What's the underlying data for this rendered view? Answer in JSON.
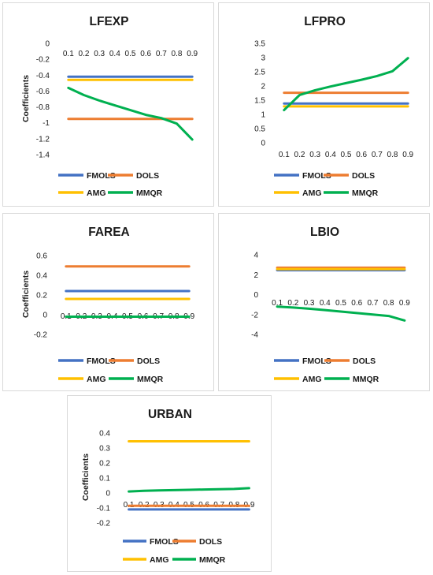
{
  "chart_data": [
    {
      "type": "line",
      "title": "LFEXP",
      "xlabel": "",
      "ylabel": "Coefficients",
      "x": [
        "0.1",
        "0.2",
        "0.3",
        "0.4",
        "0.5",
        "0.6",
        "0.7",
        "0.8",
        "0.9"
      ],
      "yticks": [
        "0",
        "-0.2",
        "-0.4",
        "-0.6",
        "-0.8",
        "-1",
        "-1.2",
        "-1.4"
      ],
      "ylim": [
        -1.4,
        0
      ],
      "x_axis_position": "top",
      "grid": false,
      "legend_position": "bottom",
      "series": [
        {
          "name": "FMOLS",
          "color": "#4472C4",
          "values": [
            -0.42,
            -0.42,
            -0.42,
            -0.42,
            -0.42,
            -0.42,
            -0.42,
            -0.42,
            -0.42
          ]
        },
        {
          "name": "DOLS",
          "color": "#ED7D31",
          "values": [
            -0.95,
            -0.95,
            -0.95,
            -0.95,
            -0.95,
            -0.95,
            -0.95,
            -0.95,
            -0.95
          ]
        },
        {
          "name": "AMG",
          "color": "#FFC000",
          "values": [
            -0.46,
            -0.46,
            -0.46,
            -0.46,
            -0.46,
            -0.46,
            -0.46,
            -0.46,
            -0.46
          ]
        },
        {
          "name": "MMQR",
          "color": "#00B050",
          "values": [
            -0.56,
            -0.65,
            -0.72,
            -0.78,
            -0.84,
            -0.9,
            -0.94,
            -1.01,
            -1.21
          ]
        }
      ]
    },
    {
      "type": "line",
      "title": "LFPRO",
      "xlabel": "",
      "ylabel": "",
      "x": [
        "0.1",
        "0.2",
        "0.3",
        "0.4",
        "0.5",
        "0.6",
        "0.7",
        "0.8",
        "0.9"
      ],
      "yticks": [
        "0",
        "0.5",
        "1",
        "1.5",
        "2",
        "2.5",
        "3",
        "3.5"
      ],
      "ylim": [
        0,
        3.5
      ],
      "x_axis_position": "bottom",
      "grid": false,
      "legend_position": "bottom",
      "series": [
        {
          "name": "FMOLS",
          "color": "#4472C4",
          "values": [
            1.38,
            1.38,
            1.38,
            1.38,
            1.38,
            1.38,
            1.38,
            1.38,
            1.38
          ]
        },
        {
          "name": "DOLS",
          "color": "#ED7D31",
          "values": [
            1.76,
            1.76,
            1.76,
            1.76,
            1.76,
            1.76,
            1.76,
            1.76,
            1.76
          ]
        },
        {
          "name": "AMG",
          "color": "#FFC000",
          "values": [
            1.28,
            1.28,
            1.28,
            1.28,
            1.28,
            1.28,
            1.28,
            1.28,
            1.28
          ]
        },
        {
          "name": "MMQR",
          "color": "#00B050",
          "values": [
            1.15,
            1.68,
            1.85,
            1.98,
            2.1,
            2.22,
            2.35,
            2.52,
            2.98
          ]
        }
      ]
    },
    {
      "type": "line",
      "title": "FAREA",
      "xlabel": "",
      "ylabel": "Coefficients",
      "x": [
        "0.1",
        "0.2",
        "0.3",
        "0.4",
        "0.5",
        "0.6",
        "0.7",
        "0.8",
        "0.9"
      ],
      "yticks": [
        "0.6",
        "0.4",
        "0.2",
        "0",
        "-0.2"
      ],
      "ylim": [
        -0.2,
        0.6
      ],
      "x_axis_position": "zero",
      "grid": false,
      "legend_position": "bottom",
      "series": [
        {
          "name": "FMOLS",
          "color": "#4472C4",
          "values": [
            0.24,
            0.24,
            0.24,
            0.24,
            0.24,
            0.24,
            0.24,
            0.24,
            0.24
          ]
        },
        {
          "name": "DOLS",
          "color": "#ED7D31",
          "values": [
            0.49,
            0.49,
            0.49,
            0.49,
            0.49,
            0.49,
            0.49,
            0.49,
            0.49
          ]
        },
        {
          "name": "AMG",
          "color": "#FFC000",
          "values": [
            0.16,
            0.16,
            0.16,
            0.16,
            0.16,
            0.16,
            0.16,
            0.16,
            0.16
          ]
        },
        {
          "name": "MMQR",
          "color": "#00B050",
          "values": [
            -0.02,
            -0.02,
            -0.02,
            -0.02,
            -0.02,
            -0.02,
            -0.02,
            -0.02,
            -0.02
          ]
        }
      ]
    },
    {
      "type": "line",
      "title": "LBIO",
      "xlabel": "",
      "ylabel": "",
      "x": [
        "0.1",
        "0.2",
        "0.3",
        "0.4",
        "0.5",
        "0.6",
        "0.7",
        "0.8",
        "0.9"
      ],
      "yticks": [
        "4",
        "2",
        "0",
        "-2",
        "-4"
      ],
      "ylim": [
        -4,
        4
      ],
      "x_axis_position": "zero",
      "grid": false,
      "legend_position": "bottom",
      "series": [
        {
          "name": "FMOLS",
          "color": "#4472C4",
          "values": [
            2.45,
            2.45,
            2.45,
            2.45,
            2.45,
            2.45,
            2.45,
            2.45,
            2.45
          ]
        },
        {
          "name": "DOLS",
          "color": "#ED7D31",
          "values": [
            2.7,
            2.7,
            2.7,
            2.7,
            2.7,
            2.7,
            2.7,
            2.7,
            2.7
          ]
        },
        {
          "name": "AMG",
          "color": "#FFC000",
          "values": [
            2.55,
            2.55,
            2.55,
            2.55,
            2.55,
            2.55,
            2.55,
            2.55,
            2.55
          ]
        },
        {
          "name": "MMQR",
          "color": "#00B050",
          "values": [
            -1.2,
            -1.3,
            -1.42,
            -1.55,
            -1.7,
            -1.85,
            -2.0,
            -2.15,
            -2.6
          ]
        }
      ]
    },
    {
      "type": "line",
      "title": "URBAN",
      "xlabel": "",
      "ylabel": "Coefficients",
      "x": [
        "0.1",
        "0.2",
        "0.3",
        "0.4",
        "0.5",
        "0.6",
        "0.7",
        "0.8",
        "0.9"
      ],
      "yticks": [
        "0.4",
        "0.3",
        "0.2",
        "0.1",
        "0",
        "-0.1",
        "-0.2"
      ],
      "ylim": [
        -0.2,
        0.4
      ],
      "x_axis_position": "zero",
      "grid": false,
      "legend_position": "bottom",
      "series": [
        {
          "name": "FMOLS",
          "color": "#4472C4",
          "values": [
            -0.11,
            -0.11,
            -0.11,
            -0.11,
            -0.11,
            -0.11,
            -0.11,
            -0.11,
            -0.11
          ]
        },
        {
          "name": "DOLS",
          "color": "#ED7D31",
          "values": [
            -0.085,
            -0.085,
            -0.085,
            -0.085,
            -0.085,
            -0.085,
            -0.085,
            -0.085,
            -0.085
          ]
        },
        {
          "name": "AMG",
          "color": "#FFC000",
          "values": [
            0.345,
            0.345,
            0.345,
            0.345,
            0.345,
            0.345,
            0.345,
            0.345,
            0.345
          ]
        },
        {
          "name": "MMQR",
          "color": "#00B050",
          "values": [
            0.01,
            0.015,
            0.017,
            0.019,
            0.021,
            0.023,
            0.025,
            0.027,
            0.032
          ]
        }
      ]
    }
  ]
}
